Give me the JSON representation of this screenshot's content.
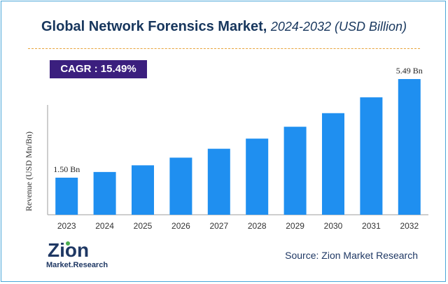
{
  "header": {
    "title_main": "Global Network Forensics Market,",
    "title_sub": "2024-2032 (USD Billion)"
  },
  "badge": {
    "cagr": "CAGR : 15.49%"
  },
  "footer": {
    "source": "Source: Zion Market Research",
    "logo_word": "Zion",
    "logo_tagline": "Market.Research"
  },
  "colors": {
    "bar": "#1f8ff0",
    "badge": "#3b1f7e",
    "title": "#17365d",
    "frame": "#4aa7d9",
    "logo_green": "#4caf50"
  },
  "chart_data": {
    "type": "bar",
    "categories": [
      "2023",
      "2024",
      "2025",
      "2026",
      "2027",
      "2028",
      "2029",
      "2030",
      "2031",
      "2032"
    ],
    "values": [
      1.5,
      1.73,
      2.0,
      2.31,
      2.67,
      3.08,
      3.56,
      4.11,
      4.75,
      5.49
    ],
    "data_labels": {
      "0": "1.50 Bn",
      "9": "5.49 Bn"
    },
    "ylabel": "Revenue (USD Mn/Bn)",
    "xlabel": "",
    "ylim": [
      0,
      5.49
    ],
    "grid": false
  }
}
